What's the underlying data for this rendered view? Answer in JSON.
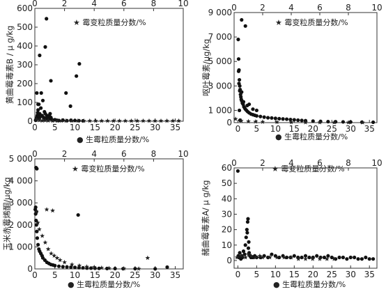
{
  "figure": {
    "marker_colors": {
      "mold": "#111111",
      "star": "#222222",
      "axis": "#333333"
    },
    "charts": [
      {
        "type": "scatter",
        "ylabel": "黄曲霉毒素B / μ g/kg",
        "xlabel": "生霉粒质量分数/%",
        "x2label": "霉变粒质量分数/%",
        "legend_bottom_marker": "●",
        "legend_top_marker": "★",
        "xlim": [
          0,
          37
        ],
        "x2lim": [
          0,
          10
        ],
        "ylim": [
          0,
          600
        ],
        "xticks": [
          "0",
          "5",
          "10",
          "15",
          "20",
          "25",
          "30",
          "35"
        ],
        "x2ticks": [
          "0",
          "2",
          "4",
          "6",
          "8",
          "10"
        ],
        "yticks": [
          "0",
          "100",
          "200",
          "300",
          "400",
          "500",
          "600"
        ],
        "series": [
          {
            "marker": "circle",
            "axis": "bottom",
            "x": [
              0.2,
              0.3,
              0.4,
              0.5,
              0.6,
              0.7,
              0.8,
              1.0,
              1.1,
              1.2,
              1.4,
              1.5,
              1.6,
              1.8,
              2.0,
              2.2,
              2.4,
              2.5,
              2.6,
              2.8,
              3.0,
              3.2,
              3.4,
              3.6,
              3.8,
              4.0,
              4.2,
              4.5,
              5.0,
              5.5,
              6.0,
              7.0,
              8.0,
              9.0,
              10.0,
              11.0,
              12.0,
              0.5,
              0.8,
              1.2,
              2.6,
              2.9,
              4.0
            ],
            "y": [
              5,
              8,
              12,
              20,
              30,
              45,
              60,
              90,
              15,
              40,
              25,
              70,
              150,
              30,
              110,
              20,
              50,
              10,
              40,
              15,
              30,
              20,
              10,
              30,
              40,
              20,
              10,
              5,
              8,
              5,
              4,
              6,
              3,
              5,
              4,
              3,
              2,
              150,
              90,
              350,
              395,
              545,
              215
            ]
          },
          {
            "marker": "circle",
            "axis": "top",
            "x": [
              2.1,
              2.4,
              2.8,
              3.0
            ],
            "y": [
              150,
              80,
              240,
              305
            ]
          },
          {
            "marker": "star",
            "axis": "top",
            "x": [
              0.1,
              0.3,
              0.5,
              0.7,
              0.9,
              1.2,
              1.5,
              1.8,
              2.1,
              2.5,
              2.9,
              3.3,
              3.7,
              4.1,
              4.5,
              4.9,
              5.3,
              5.7,
              6.1,
              6.5,
              6.9,
              7.3,
              7.7,
              8.1,
              8.5,
              8.9,
              9.3,
              9.7
            ],
            "y": [
              10,
              5,
              3,
              4,
              3,
              2,
              2,
              2,
              2,
              2,
              2,
              2,
              2,
              2,
              2,
              2,
              2,
              2,
              2,
              2,
              2,
              2,
              2,
              2,
              2,
              2,
              2,
              2
            ]
          }
        ]
      },
      {
        "type": "scatter",
        "ylabel": "呕吐霉素/μg/kg",
        "xlabel": "生霉粒质量分数/%",
        "x2label": "霉变粒质量分数/%",
        "legend_bottom_marker": "●",
        "legend_top_marker": "★",
        "xlim": [
          -1,
          37
        ],
        "x2lim": [
          0,
          10
        ],
        "ylim": [
          0,
          9000
        ],
        "xticks": [
          "0",
          "5",
          "10",
          "15",
          "20",
          "25",
          "30",
          "35"
        ],
        "x2ticks": [
          "0",
          "2",
          "4",
          "6",
          "8",
          "10"
        ],
        "yticks": [
          "0",
          "1 000",
          "3 000",
          "5 000",
          "7 000",
          "9 000"
        ],
        "ytick_values": [
          0,
          1000,
          3000,
          5000,
          7000,
          9000
        ],
        "series": [
          {
            "marker": "circle",
            "axis": "bottom",
            "x": [
              0.1,
              0.2,
              0.3,
              0.4,
              0.5,
              0.6,
              0.7,
              0.8,
              0.9,
              1.0,
              1.2,
              1.4,
              1.6,
              1.8,
              2.0,
              2.3,
              2.6,
              3.0,
              3.5,
              4.0,
              4.5,
              5.0,
              6.0,
              7.0,
              8.0,
              9.0,
              10.0,
              11.0,
              12.0,
              13.0,
              14.0,
              15.0,
              16.0,
              17.0,
              18.0,
              20.0,
              22.0,
              24.0,
              26.0,
              28.0,
              30.0,
              33.0,
              36.0,
              0.2,
              0.3,
              0.5,
              1.0,
              1.5,
              2.5,
              3.0,
              4.0,
              5.0,
              1.0,
              2.0,
              0.4,
              0.6
            ],
            "y": [
              6800,
              5200,
              4300,
              3500,
              3000,
              2700,
              2300,
              2100,
              1900,
              1800,
              1600,
              1500,
              1300,
              1200,
              1100,
              1000,
              900,
              800,
              700,
              650,
              600,
              550,
              500,
              450,
              400,
              380,
              350,
              320,
              300,
              280,
              250,
              230,
              200,
              180,
              160,
              120,
              100,
              80,
              70,
              60,
              50,
              40,
              30,
              4200,
              3200,
              2600,
              2500,
              1700,
              1400,
              1500,
              1100,
              1000,
              8400,
              7900,
              1000,
              200
            ]
          },
          {
            "marker": "star",
            "axis": "top",
            "x": [
              0.1,
              0.5,
              1.0,
              1.5,
              2.0,
              3.0,
              4.0,
              5.0,
              6.0,
              7.0,
              8.0,
              9.0
            ],
            "y": [
              300,
              150,
              100,
              80,
              60,
              40,
              30,
              20,
              15,
              10,
              10,
              10
            ]
          }
        ]
      },
      {
        "type": "scatter",
        "ylabel": "玉米赤霉烯酮/μg/kg",
        "xlabel": "生霉粒质量分数/%",
        "x2label": "霉变粒质量分数/%",
        "legend_bottom_marker": "●",
        "legend_top_marker": "★",
        "xlim": [
          0,
          37
        ],
        "x2lim": [
          0,
          10
        ],
        "ylim": [
          0,
          5000
        ],
        "xticks": [
          "0",
          "5",
          "10",
          "15",
          "20",
          "25",
          "30",
          "35"
        ],
        "x2ticks": [
          "0",
          "2",
          "4",
          "6",
          "8",
          "10"
        ],
        "yticks": [
          "0",
          "1 000",
          "2 000",
          "3 000",
          "4 000",
          "5 000"
        ],
        "ytick_values": [
          0,
          1000,
          2000,
          3000,
          4000,
          5000
        ],
        "series": [
          {
            "marker": "circle",
            "axis": "bottom",
            "x": [
              0.1,
              0.2,
              0.3,
              0.4,
              0.5,
              0.6,
              0.8,
              1.0,
              1.2,
              1.5,
              1.8,
              2.0,
              2.5,
              3.0,
              3.5,
              4.0,
              4.5,
              5.0,
              6.0,
              7.0,
              8.0,
              9.0,
              10.0,
              11.0,
              12.0,
              13.0,
              14.0,
              15.0,
              16.0,
              18.0,
              20.0,
              22.0,
              25.0,
              30.0,
              33.0,
              0.3,
              0.5,
              0.2,
              0.4,
              10.8
            ],
            "y": [
              2700,
              2500,
              2200,
              2000,
              1700,
              1400,
              1100,
              900,
              800,
              700,
              600,
              500,
              400,
              300,
              250,
              200,
              180,
              150,
              120,
              100,
              90,
              80,
              70,
              60,
              50,
              40,
              35,
              30,
              25,
              20,
              15,
              10,
              10,
              5,
              80,
              4600,
              4550,
              2800,
              2600,
              2450
            ]
          },
          {
            "marker": "star",
            "axis": "top",
            "x": [
              0.1,
              0.2,
              0.3,
              0.5,
              0.7,
              0.9,
              1.1,
              1.3,
              1.5,
              1.7,
              2.0,
              2.5,
              3.0,
              3.5,
              4.0,
              4.5,
              5.0,
              6.0,
              7.0,
              7.6,
              0.8,
              1.2
            ],
            "y": [
              2600,
              2100,
              1800,
              1500,
              1200,
              900,
              700,
              600,
              500,
              400,
              300,
              200,
              150,
              100,
              80,
              50,
              30,
              20,
              10,
              500,
              2700,
              2650
            ]
          }
        ]
      },
      {
        "type": "scatter",
        "ylabel": "赭曲霉毒素A/ μ g/kg",
        "xlabel": "生霉粒质量分数/%",
        "x2label": "霉变粒质量分数/%",
        "legend_bottom_marker": "●",
        "legend_top_marker": "★",
        "xlim": [
          -1,
          37
        ],
        "x2lim": [
          0,
          10
        ],
        "ylim": [
          -5,
          60
        ],
        "xticks": [
          "0",
          "5",
          "10",
          "15",
          "20",
          "25",
          "30",
          "35"
        ],
        "x2ticks": [
          "0",
          "2",
          "4",
          "6",
          "8",
          "10"
        ],
        "yticks": [
          "0",
          "10",
          "20",
          "30",
          "40",
          "50",
          "60"
        ],
        "ytick_values": [
          0,
          10,
          20,
          30,
          40,
          50,
          60
        ],
        "series": [
          {
            "marker": "circle",
            "axis": "bottom",
            "x": [
              0.1,
              0.3,
              0.5,
              0.8,
              1.0,
              1.2,
              1.5,
              1.8,
              2.0,
              2.2,
              2.4,
              2.6,
              2.8,
              3.0,
              3.2,
              3.5,
              4.0,
              4.5,
              5.0,
              6.0,
              7.0,
              8.0,
              9.0,
              10.0,
              11.0,
              12.0,
              13.0,
              14.0,
              15.0,
              16.0,
              17.0,
              18.0,
              19.0,
              20.0,
              21.0,
              22.0,
              23.0,
              24.0,
              25.0,
              26.0,
              27.0,
              28.0,
              29.0,
              30.0,
              31.0,
              32.0,
              33.0,
              34.0,
              35.0,
              36.0,
              2.5,
              2.7,
              2.9,
              0.0
            ],
            "y": [
              3,
              2,
              5,
              1,
              3,
              2,
              6,
              4,
              10,
              15,
              20,
              25,
              8,
              5,
              3,
              2,
              2,
              3,
              2,
              2,
              3,
              2,
              4,
              3,
              2,
              3,
              2,
              2,
              3,
              2,
              2,
              3,
              2,
              2,
              3,
              2,
              2,
              3,
              2,
              1,
              2,
              2,
              1,
              2,
              2,
              1,
              1,
              2,
              1,
              1,
              18,
              27,
              12,
              58
            ]
          },
          {
            "marker": "star",
            "axis": "top",
            "x": [
              0.2,
              0.5,
              0.8,
              1.0,
              1.2,
              1.5,
              1.8,
              2.0,
              2.5,
              3.0,
              3.5,
              4.0,
              4.5,
              5.0,
              5.5,
              6.0,
              6.5,
              7.0
            ],
            "y": [
              2,
              3,
              2,
              4,
              3,
              2,
              3,
              2,
              2,
              2,
              2,
              2,
              1,
              1,
              1,
              1,
              1,
              1
            ]
          }
        ]
      }
    ]
  }
}
